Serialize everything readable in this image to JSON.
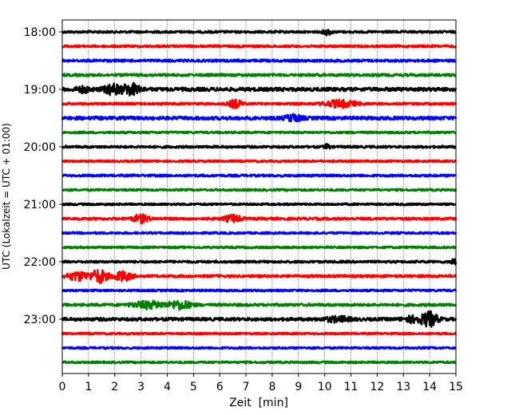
{
  "chart_data": {
    "type": "line",
    "title": "",
    "xlabel": "Zeit  [min]",
    "ylabel": "UTC (Lokalzeit = UTC + 01:00)",
    "xlim": [
      0,
      15
    ],
    "x_ticks": [
      "0",
      "1",
      "2",
      "3",
      "4",
      "5",
      "6",
      "7",
      "8",
      "9",
      "10",
      "11",
      "12",
      "13",
      "14",
      "15"
    ],
    "ylim": [
      "17:45",
      "24:00"
    ],
    "y_ticks": [
      "18:00",
      "19:00",
      "20:00",
      "21:00",
      "22:00",
      "23:00"
    ],
    "trace_colors": [
      "#000000",
      "#ff0000",
      "#0000ff",
      "#008000"
    ],
    "grid": "vertical dotted",
    "traces": [
      {
        "start": "18:00",
        "color": "black",
        "amplitude": 0.9,
        "events": [
          {
            "t": 10.1,
            "amp": 2.2,
            "width": 0.15
          }
        ]
      },
      {
        "start": "18:15",
        "color": "red",
        "amplitude": 0.9,
        "events": []
      },
      {
        "start": "18:30",
        "color": "blue",
        "amplitude": 1.0,
        "events": []
      },
      {
        "start": "18:45",
        "color": "green",
        "amplitude": 1.0,
        "events": []
      },
      {
        "start": "19:00",
        "color": "black",
        "amplitude": 1.4,
        "events": [
          {
            "t": 1.9,
            "amp": 3.6,
            "width": 0.3
          },
          {
            "t": 2.6,
            "amp": 4.2,
            "width": 0.35
          },
          {
            "t": 0.8,
            "amp": 1.8,
            "width": 0.3
          }
        ]
      },
      {
        "start": "19:15",
        "color": "red",
        "amplitude": 0.9,
        "events": [
          {
            "t": 6.6,
            "amp": 3.0,
            "width": 0.25
          },
          {
            "t": 10.6,
            "amp": 2.6,
            "width": 0.6
          }
        ]
      },
      {
        "start": "19:30",
        "color": "blue",
        "amplitude": 1.3,
        "events": [
          {
            "t": 8.8,
            "amp": 2.4,
            "width": 0.3
          }
        ]
      },
      {
        "start": "19:45",
        "color": "green",
        "amplitude": 0.8,
        "events": []
      },
      {
        "start": "20:00",
        "color": "black",
        "amplitude": 0.9,
        "events": [
          {
            "t": 10.1,
            "amp": 2.0,
            "width": 0.1
          }
        ]
      },
      {
        "start": "20:15",
        "color": "red",
        "amplitude": 0.8,
        "events": []
      },
      {
        "start": "20:30",
        "color": "blue",
        "amplitude": 0.9,
        "events": []
      },
      {
        "start": "20:45",
        "color": "green",
        "amplitude": 0.8,
        "events": []
      },
      {
        "start": "21:00",
        "color": "black",
        "amplitude": 0.8,
        "events": []
      },
      {
        "start": "21:15",
        "color": "red",
        "amplitude": 1.0,
        "events": [
          {
            "t": 3.0,
            "amp": 2.8,
            "width": 0.3
          },
          {
            "t": 6.5,
            "amp": 2.6,
            "width": 0.3
          }
        ]
      },
      {
        "start": "21:30",
        "color": "blue",
        "amplitude": 0.8,
        "events": []
      },
      {
        "start": "21:45",
        "color": "green",
        "amplitude": 0.8,
        "events": []
      },
      {
        "start": "22:00",
        "color": "black",
        "amplitude": 0.9,
        "events": [
          {
            "t": 14.9,
            "amp": 2.5,
            "width": 0.1
          }
        ]
      },
      {
        "start": "22:15",
        "color": "red",
        "amplitude": 1.0,
        "events": [
          {
            "t": 0.6,
            "amp": 3.2,
            "width": 0.4
          },
          {
            "t": 1.4,
            "amp": 5.0,
            "width": 0.3
          },
          {
            "t": 2.3,
            "amp": 3.4,
            "width": 0.35
          }
        ]
      },
      {
        "start": "22:30",
        "color": "blue",
        "amplitude": 0.8,
        "events": []
      },
      {
        "start": "22:45",
        "color": "green",
        "amplitude": 1.0,
        "events": [
          {
            "t": 3.3,
            "amp": 2.6,
            "width": 0.6
          },
          {
            "t": 4.5,
            "amp": 3.2,
            "width": 0.4
          }
        ]
      },
      {
        "start": "23:00",
        "color": "black",
        "amplitude": 1.2,
        "events": [
          {
            "t": 10.5,
            "amp": 1.8,
            "width": 0.5
          },
          {
            "t": 14.0,
            "amp": 5.2,
            "width": 0.3
          },
          {
            "t": 13.4,
            "amp": 2.2,
            "width": 0.4
          }
        ]
      },
      {
        "start": "23:15",
        "color": "red",
        "amplitude": 0.8,
        "events": []
      },
      {
        "start": "23:30",
        "color": "blue",
        "amplitude": 0.8,
        "events": []
      },
      {
        "start": "23:45",
        "color": "green",
        "amplitude": 0.8,
        "events": []
      }
    ]
  }
}
